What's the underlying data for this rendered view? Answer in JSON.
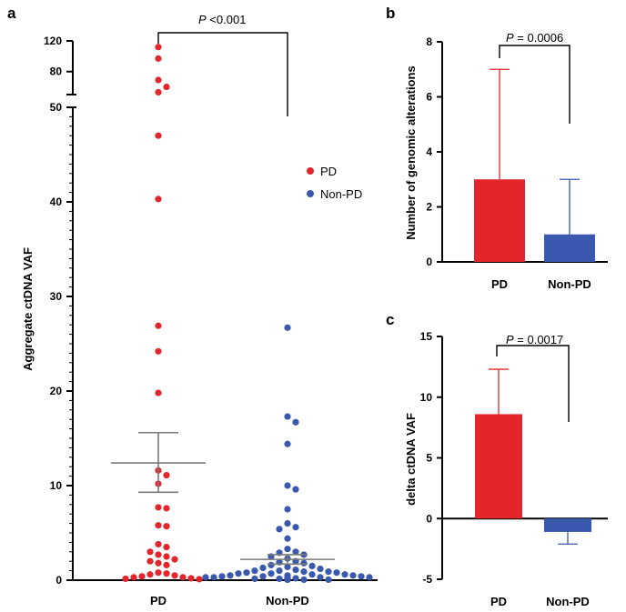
{
  "colors": {
    "pd": "#e3262b",
    "nonpd": "#3a58ad",
    "error": "#7a7a7a"
  },
  "chart_data": [
    {
      "panel": "a",
      "type": "scatter",
      "categories": [
        "PD",
        "Non-PD"
      ],
      "ylabel": "Aggregate ctDNA VAF",
      "y_scale": "broken",
      "ylim_lower": [
        0,
        50
      ],
      "ylim_upper": [
        50,
        120
      ],
      "yticks_lower": [
        "0",
        "10",
        "20",
        "30",
        "40",
        "50"
      ],
      "yticks_upper": [
        "80",
        "120"
      ],
      "annotation": {
        "text": "<0.001",
        "italic_prefix": "P"
      },
      "legend": {
        "placement": "right",
        "entries": [
          "PD",
          "Non-PD"
        ]
      },
      "series": [
        {
          "name": "PD",
          "color": "#e3262b",
          "mean": 12.4,
          "sem": [
            9.3,
            15.6
          ],
          "values": [
            112,
            97,
            69,
            60,
            53,
            47,
            40.3,
            26.9,
            24.2,
            19.8,
            11.6,
            11.1,
            10.2,
            7.7,
            7.6,
            5.8,
            5.7,
            3.8,
            3.5,
            3.0,
            2.7,
            2.5,
            2.2,
            2.0,
            1.8,
            1.6,
            0.8,
            0.7,
            0.6,
            0.5,
            0.4,
            0.3,
            0.3,
            0.2,
            0.15,
            0.1
          ]
        },
        {
          "name": "Non-PD",
          "color": "#3a58ad",
          "mean": 2.2,
          "sem": [
            1.7,
            2.7
          ],
          "values": [
            26.7,
            17.3,
            16.7,
            14.4,
            10.0,
            9.6,
            7.5,
            6.0,
            5.6,
            5.4,
            4.4,
            3.3,
            3.0,
            2.9,
            2.7,
            2.5,
            2.3,
            2.0,
            1.9,
            1.8,
            1.6,
            1.5,
            1.4,
            1.3,
            1.2,
            1.1,
            1.0,
            1.0,
            0.9,
            0.9,
            0.8,
            0.8,
            0.7,
            0.7,
            0.6,
            0.6,
            0.5,
            0.5,
            0.5,
            0.4,
            0.4,
            0.4,
            0.3,
            0.3,
            0.3,
            0.3,
            0.2,
            0.2,
            0.2,
            0.2,
            0.15,
            0.15,
            0.1,
            0.1,
            0.1,
            0.1,
            0.05,
            0.05,
            0.05,
            0.05
          ]
        }
      ]
    },
    {
      "panel": "b",
      "type": "bar",
      "categories": [
        "PD",
        "Non-PD"
      ],
      "ylabel": "Number of genomic alterations",
      "ylim": [
        0,
        8
      ],
      "yticks": [
        "0",
        "2",
        "4",
        "6",
        "8"
      ],
      "values": [
        3,
        1
      ],
      "error_upper": [
        7,
        3
      ],
      "annotation": {
        "text": " = 0.0006",
        "italic_prefix": "P"
      }
    },
    {
      "panel": "c",
      "type": "bar",
      "categories": [
        "PD",
        "Non-PD"
      ],
      "ylabel": "delta ctDNA VAF",
      "ylim": [
        -5,
        15
      ],
      "yticks": [
        "-5",
        "0",
        "5",
        "10",
        "15"
      ],
      "values": [
        8.6,
        -1.1
      ],
      "error_end": [
        12.3,
        -2.1
      ],
      "annotation": {
        "text": " = 0.0017",
        "italic_prefix": "P"
      }
    }
  ]
}
